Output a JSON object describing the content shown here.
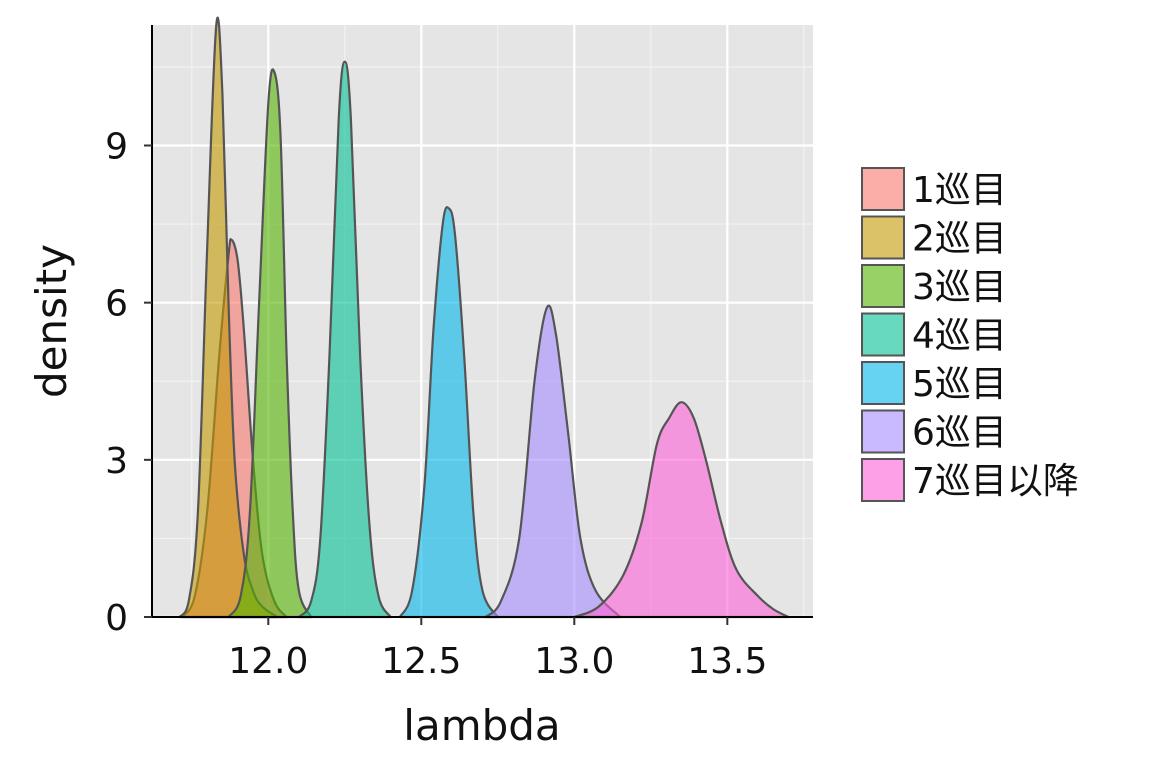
{
  "chart_data": {
    "type": "area",
    "xlabel": "lambda",
    "ylabel": "density",
    "xlim": [
      11.62,
      13.78
    ],
    "ylim": [
      0,
      11.3
    ],
    "x_ticks": [
      12.0,
      12.5,
      13.0,
      13.5
    ],
    "x_tick_labels": [
      "12.0",
      "12.5",
      "13.0",
      "13.5"
    ],
    "y_ticks": [
      0,
      3,
      6,
      9
    ],
    "y_tick_labels": [
      "0",
      "3",
      "6",
      "9"
    ],
    "grid": true,
    "legend_position": "right",
    "series": [
      {
        "name": "1巡目",
        "color": "#F8766D",
        "points": [
          [
            11.72,
            0
          ],
          [
            11.76,
            0.4
          ],
          [
            11.8,
            2.0
          ],
          [
            11.84,
            5.0
          ],
          [
            11.87,
            6.9
          ],
          [
            11.88,
            7.2
          ],
          [
            11.9,
            6.8
          ],
          [
            11.92,
            5.5
          ],
          [
            11.95,
            3.0
          ],
          [
            11.98,
            1.2
          ],
          [
            12.02,
            0.3
          ],
          [
            12.06,
            0
          ]
        ]
      },
      {
        "name": "2巡目",
        "color": "#C49A00",
        "points": [
          [
            11.71,
            0
          ],
          [
            11.74,
            0.3
          ],
          [
            11.77,
            2.0
          ],
          [
            11.8,
            7.0
          ],
          [
            11.83,
            11.3
          ],
          [
            11.85,
            10.0
          ],
          [
            11.87,
            6.0
          ],
          [
            11.89,
            3.0
          ],
          [
            11.92,
            1.2
          ],
          [
            11.95,
            0.5
          ],
          [
            11.98,
            0.2
          ],
          [
            12.03,
            0
          ]
        ]
      },
      {
        "name": "3巡目",
        "color": "#53B400",
        "points": [
          [
            11.87,
            0
          ],
          [
            11.91,
            0.4
          ],
          [
            11.94,
            2.0
          ],
          [
            11.97,
            6.0
          ],
          [
            12.0,
            9.8
          ],
          [
            12.02,
            10.4
          ],
          [
            12.04,
            9.2
          ],
          [
            12.06,
            5.0
          ],
          [
            12.08,
            2.0
          ],
          [
            12.1,
            0.5
          ],
          [
            12.14,
            0
          ]
        ]
      },
      {
        "name": "4巡目",
        "color": "#00C094",
        "points": [
          [
            12.1,
            0
          ],
          [
            12.14,
            0.3
          ],
          [
            12.17,
            1.5
          ],
          [
            12.2,
            5.0
          ],
          [
            12.23,
            9.5
          ],
          [
            12.25,
            10.6
          ],
          [
            12.27,
            9.5
          ],
          [
            12.3,
            5.0
          ],
          [
            12.33,
            1.8
          ],
          [
            12.36,
            0.4
          ],
          [
            12.4,
            0
          ]
        ]
      },
      {
        "name": "5巡目",
        "color": "#00B6EB",
        "points": [
          [
            12.43,
            0
          ],
          [
            12.47,
            0.5
          ],
          [
            12.51,
            2.5
          ],
          [
            12.54,
            5.5
          ],
          [
            12.57,
            7.5
          ],
          [
            12.59,
            7.8
          ],
          [
            12.61,
            7.3
          ],
          [
            12.64,
            5.0
          ],
          [
            12.67,
            2.0
          ],
          [
            12.7,
            0.5
          ],
          [
            12.75,
            0
          ]
        ]
      },
      {
        "name": "6巡目",
        "color": "#A58AFF",
        "points": [
          [
            12.71,
            0
          ],
          [
            12.76,
            0.3
          ],
          [
            12.82,
            1.5
          ],
          [
            12.87,
            4.5
          ],
          [
            12.91,
            5.9
          ],
          [
            12.94,
            5.4
          ],
          [
            12.98,
            3.5
          ],
          [
            13.02,
            1.5
          ],
          [
            13.07,
            0.5
          ],
          [
            13.15,
            0
          ]
        ]
      },
      {
        "name": "7巡目以降",
        "color": "#FB61D7",
        "points": [
          [
            13.0,
            0
          ],
          [
            13.08,
            0.2
          ],
          [
            13.16,
            0.8
          ],
          [
            13.22,
            1.8
          ],
          [
            13.27,
            3.3
          ],
          [
            13.31,
            3.8
          ],
          [
            13.35,
            4.1
          ],
          [
            13.39,
            3.8
          ],
          [
            13.43,
            3.0
          ],
          [
            13.48,
            1.8
          ],
          [
            13.53,
            0.9
          ],
          [
            13.6,
            0.4
          ],
          [
            13.65,
            0.15
          ],
          [
            13.7,
            0
          ]
        ]
      }
    ]
  }
}
